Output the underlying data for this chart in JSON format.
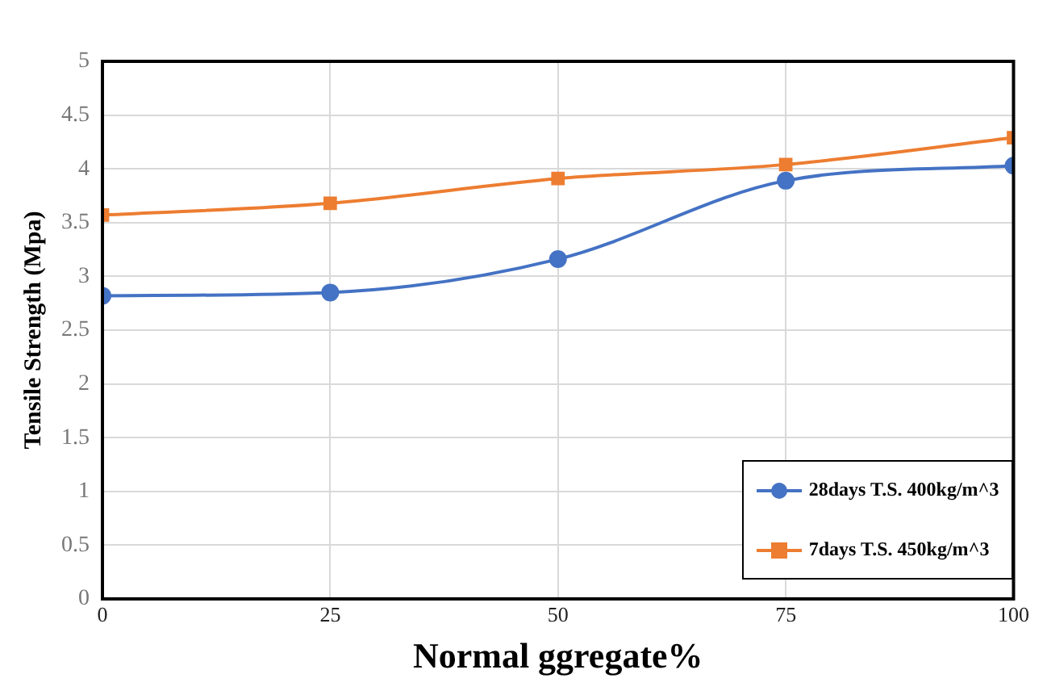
{
  "chart_data": {
    "type": "line",
    "xlabel": "Normal ggregate%",
    "ylabel": "Tensile Strength (Mpa)",
    "x": [
      0,
      25,
      50,
      75,
      100
    ],
    "series": [
      {
        "name": "28days T.S. 400kg/m^3",
        "color": "#4472c4",
        "marker": "circle",
        "values": [
          2.82,
          2.85,
          3.16,
          3.89,
          4.03
        ]
      },
      {
        "name": "7days T.S. 450kg/m^3",
        "color": "#ed7d31",
        "marker": "square",
        "values": [
          3.57,
          3.68,
          3.91,
          4.04,
          4.29
        ]
      }
    ],
    "xlim": [
      0,
      100
    ],
    "xticks": [
      0,
      25,
      50,
      75,
      100
    ],
    "ylim": [
      0,
      5
    ],
    "yticks": [
      0,
      0.5,
      1,
      1.5,
      2,
      2.5,
      3,
      3.5,
      4,
      4.5,
      5
    ],
    "grid": true,
    "legend": "bottom right"
  }
}
